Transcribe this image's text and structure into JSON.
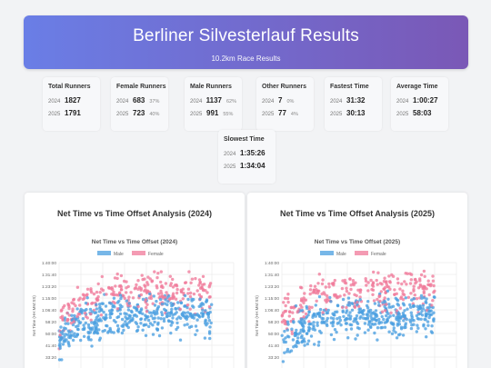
{
  "header": {
    "title": "Berliner Silvesterlauf Results",
    "subtitle": "10.2km Race Results"
  },
  "stats": [
    {
      "label": "Total Runners",
      "rows": [
        {
          "year": "2024",
          "value": "1827",
          "pct": ""
        },
        {
          "year": "2025",
          "value": "1791",
          "pct": ""
        }
      ]
    },
    {
      "label": "Female Runners",
      "rows": [
        {
          "year": "2024",
          "value": "683",
          "pct": "37%"
        },
        {
          "year": "2025",
          "value": "723",
          "pct": "40%"
        }
      ]
    },
    {
      "label": "Male Runners",
      "rows": [
        {
          "year": "2024",
          "value": "1137",
          "pct": "62%"
        },
        {
          "year": "2025",
          "value": "991",
          "pct": "55%"
        }
      ]
    },
    {
      "label": "Other Runners",
      "rows": [
        {
          "year": "2024",
          "value": "7",
          "pct": "0%"
        },
        {
          "year": "2025",
          "value": "77",
          "pct": "4%"
        }
      ]
    },
    {
      "label": "Fastest Time",
      "rows": [
        {
          "year": "2024",
          "value": "31:32",
          "pct": ""
        },
        {
          "year": "2025",
          "value": "30:13",
          "pct": ""
        }
      ]
    },
    {
      "label": "Average Time",
      "rows": [
        {
          "year": "2024",
          "value": "1:00:27",
          "pct": ""
        },
        {
          "year": "2025",
          "value": "58:03",
          "pct": ""
        }
      ]
    },
    {
      "label": "Slowest Time",
      "rows": [
        {
          "year": "2024",
          "value": "1:35:26",
          "pct": ""
        },
        {
          "year": "2025",
          "value": "1:34:04",
          "pct": ""
        }
      ]
    }
  ],
  "colors": {
    "male": "#4a9fe0",
    "female": "#f07a9a",
    "grid": "#e6e6e6",
    "axis": "#666"
  },
  "chart_data": [
    {
      "type": "scatter",
      "panel_title": "Net Time vs Time Offset Analysis (2024)",
      "title": "Net Time vs Time Offset (2024)",
      "xlabel": "",
      "ylabel": "Net Time (HH:MM:SS)",
      "x_ticks": [
        "0:00",
        "1:40",
        "3:20",
        "5:00",
        "6:40",
        "8:20",
        "10:00",
        "11:40",
        "13:20"
      ],
      "y_ticks": [
        "25:00",
        "33:20",
        "41:40",
        "50:00",
        "58:20",
        "1:06:40",
        "1:15:00",
        "1:23:20",
        "1:31:40",
        "1:40:00"
      ],
      "xlim_min": [
        0,
        800
      ],
      "ylim_min": [
        25,
        100
      ],
      "legend": "top",
      "series": [
        {
          "name": "Male",
          "color": "#4a9fe0",
          "count": 1137,
          "x_range_min": [
            0,
            700
          ],
          "y_range_min": [
            31.5,
            95.4
          ]
        },
        {
          "name": "Female",
          "color": "#f07a9a",
          "count": 683,
          "x_range_min": [
            0,
            700
          ],
          "y_range_min": [
            38,
            95.4
          ]
        }
      ]
    },
    {
      "type": "scatter",
      "panel_title": "Net Time vs Time Offset Analysis (2025)",
      "title": "Net Time vs Time Offset (2025)",
      "xlabel": "",
      "ylabel": "Net Time (HH:MM:SS)",
      "x_ticks": [
        "0:00",
        "1:40",
        "3:20",
        "5:00",
        "6:40",
        "8:20",
        "10:00",
        "11:40",
        "13:20"
      ],
      "y_ticks": [
        "25:00",
        "33:20",
        "41:40",
        "50:00",
        "58:20",
        "1:06:40",
        "1:15:00",
        "1:23:20",
        "1:31:40",
        "1:40:00"
      ],
      "xlim_min": [
        0,
        800
      ],
      "ylim_min": [
        25,
        100
      ],
      "legend": "top",
      "series": [
        {
          "name": "Male",
          "color": "#4a9fe0",
          "count": 991,
          "x_range_min": [
            0,
            700
          ],
          "y_range_min": [
            30.2,
            94
          ]
        },
        {
          "name": "Female",
          "color": "#f07a9a",
          "count": 723,
          "x_range_min": [
            0,
            700
          ],
          "y_range_min": [
            38,
            94
          ]
        }
      ]
    }
  ]
}
